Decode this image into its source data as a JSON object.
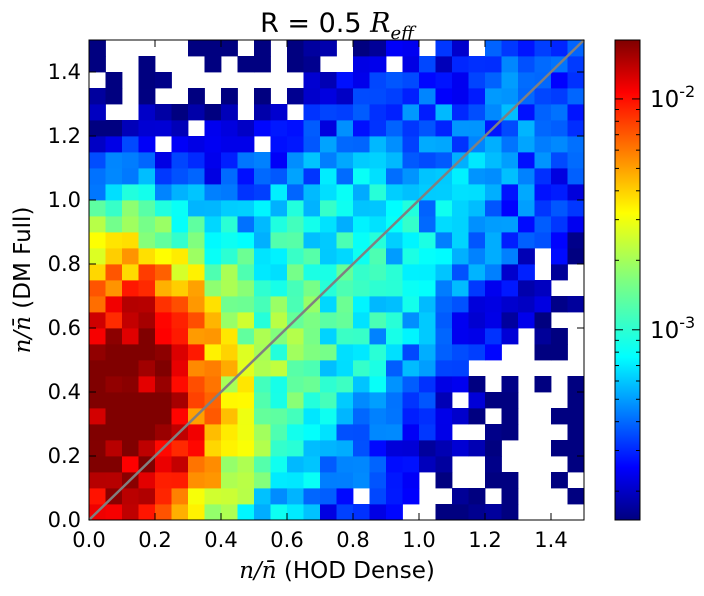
{
  "chart_data": {
    "type": "heatmap",
    "title": {
      "prefix": "R = 0.5 ",
      "math": "R",
      "math_sub": "eff"
    },
    "xlabel": {
      "math": "n/n̄",
      "text": " (HOD Dense)"
    },
    "ylabel": {
      "math": "n/n̄",
      "text": " (DM Full)"
    },
    "xlim": [
      0,
      1.5
    ],
    "ylim": [
      0,
      1.5
    ],
    "xticks": [
      "0.0",
      "0.2",
      "0.4",
      "0.6",
      "0.8",
      "1.0",
      "1.2",
      "1.4"
    ],
    "yticks": [
      "0.0",
      "0.2",
      "0.4",
      "0.6",
      "0.8",
      "1.0",
      "1.2",
      "1.4"
    ],
    "bins": 30,
    "bin_width": 0.05,
    "colorbar": {
      "scale": "log",
      "colormap": "jet",
      "vmin": 0.00015,
      "vmax": 0.018,
      "ticks": [
        {
          "value": 0.001,
          "base": "10",
          "exp": "-3"
        },
        {
          "value": 0.01,
          "base": "10",
          "exp": "-2"
        }
      ]
    },
    "reference_line": {
      "from": [
        0,
        0
      ],
      "to": [
        1.5,
        1.5
      ],
      "color": "#808080"
    },
    "density_model": {
      "note": "cells: [x_bin, y_bin, log10 density]",
      "cells": []
    }
  }
}
